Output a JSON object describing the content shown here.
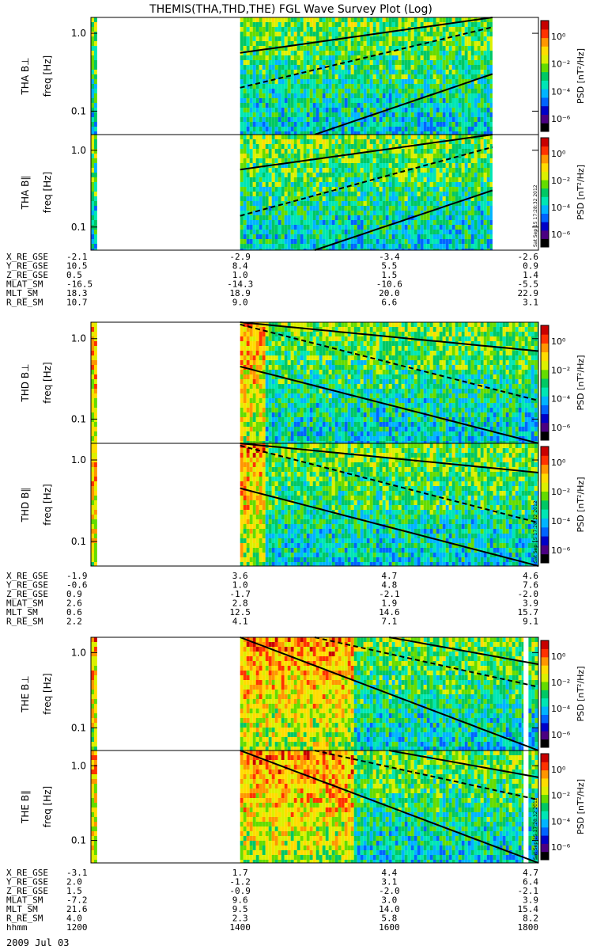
{
  "title": "THEMIS(THA,THD,THE) FGL Wave Survey Plot (Log)",
  "date": "2009 Jul 03",
  "stamp": "Sat Sep 15 17:28:32 2012",
  "ephem_tick_hours": [
    "1200",
    "1400",
    "1600",
    "1800"
  ],
  "colorbar": {
    "label": "PSD [nT²/Hz]",
    "tick_labels": [
      "10⁰",
      "10⁻²",
      "10⁻⁴",
      "10⁻⁶"
    ],
    "colors": [
      "#000000",
      "#4b0082",
      "#0000c8",
      "#0064ff",
      "#00b4ff",
      "#00e6b4",
      "#00c864",
      "#64dc00",
      "#dcf000",
      "#ffdc00",
      "#ff9600",
      "#ff3200",
      "#c80000"
    ]
  },
  "ephem_rows": {
    "a": [
      {
        "label": "X_RE_GSE",
        "values": [
          "-2.1",
          "-2.9",
          "-3.4",
          "-2.6"
        ]
      },
      {
        "label": "Y_RE_GSE",
        "values": [
          "10.5",
          "8.4",
          "5.5",
          "0.9"
        ]
      },
      {
        "label": "Z_RE_GSE",
        "values": [
          "0.5",
          "1.0",
          "1.5",
          "1.4"
        ]
      },
      {
        "label": "MLAT_SM",
        "values": [
          "-16.5",
          "-14.3",
          "-10.6",
          "-5.5"
        ]
      },
      {
        "label": "MLT_SM",
        "values": [
          "18.3",
          "18.9",
          "20.0",
          "22.9"
        ]
      },
      {
        "label": "R_RE_SM",
        "values": [
          "10.7",
          "9.0",
          "6.6",
          "3.1"
        ]
      }
    ],
    "d": [
      {
        "label": "X_RE_GSE",
        "values": [
          "-1.9",
          "3.6",
          "4.7",
          "4.6"
        ]
      },
      {
        "label": "Y_RE_GSE",
        "values": [
          "-0.6",
          "1.0",
          "4.8",
          "7.6"
        ]
      },
      {
        "label": "Z_RE_GSE",
        "values": [
          "0.9",
          "-1.7",
          "-2.1",
          "-2.0"
        ]
      },
      {
        "label": "MLAT_SM",
        "values": [
          "2.6",
          "2.8",
          "1.9",
          "3.9"
        ]
      },
      {
        "label": "MLT_SM",
        "values": [
          "0.6",
          "12.5",
          "14.6",
          "15.7"
        ]
      },
      {
        "label": "R_RE_SM",
        "values": [
          "2.2",
          "4.1",
          "7.1",
          "9.1"
        ]
      }
    ],
    "e": [
      {
        "label": "X_RE_GSE",
        "values": [
          "-3.1",
          "1.7",
          "4.4",
          "4.7"
        ]
      },
      {
        "label": "Y_RE_GSE",
        "values": [
          "2.0",
          "-1.2",
          "3.1",
          "6.4"
        ]
      },
      {
        "label": "Z_RE_GSE",
        "values": [
          "1.5",
          "-0.9",
          "-2.0",
          "-2.1"
        ]
      },
      {
        "label": "MLAT_SM",
        "values": [
          "-7.2",
          "9.6",
          "3.0",
          "3.9"
        ]
      },
      {
        "label": "MLT_SM",
        "values": [
          "21.6",
          "9.5",
          "14.0",
          "15.4"
        ]
      },
      {
        "label": "R_RE_SM",
        "values": [
          "4.0",
          "2.3",
          "5.8",
          "8.2"
        ]
      },
      {
        "label": "hhmm",
        "values": [
          "1200",
          "1400",
          "1600",
          "1800"
        ]
      }
    ]
  },
  "chart_data": [
    {
      "type": "heatmap",
      "ylabel": "THA B⊥",
      "ylabel2": "freq [Hz]",
      "y_scale": "log",
      "ylim": [
        0.05,
        1.6
      ],
      "y_ticks": [
        0.1,
        1.0
      ],
      "y_tick_labels": [
        "0.1",
        "1.0"
      ],
      "x_range_hhmm": [
        "1200",
        "1800"
      ],
      "data_intervals_hhmm": [
        [
          "1200",
          "1205"
        ],
        [
          "1400",
          "1723"
        ]
      ],
      "curves": {
        "solid_upper": [
          [
            1400,
            0.56
          ],
          [
            1723,
            1.6
          ]
        ],
        "dashed": [
          [
            1400,
            0.2
          ],
          [
            1723,
            1.2
          ]
        ],
        "solid_lower": [
          [
            1500,
            0.05
          ],
          [
            1723,
            0.3
          ]
        ]
      }
    },
    {
      "type": "heatmap",
      "ylabel": "THA B∥",
      "ylabel2": "freq [Hz]",
      "y_scale": "log",
      "ylim": [
        0.05,
        1.6
      ],
      "y_ticks": [
        0.1,
        1.0
      ],
      "y_tick_labels": [
        "0.1",
        "1.0"
      ],
      "x_range_hhmm": [
        "1200",
        "1800"
      ],
      "data_intervals_hhmm": [
        [
          "1200",
          "1205"
        ],
        [
          "1400",
          "1723"
        ]
      ],
      "curves": {
        "solid_upper": [
          [
            1400,
            0.56
          ],
          [
            1723,
            1.6
          ]
        ],
        "dashed": [
          [
            1400,
            0.14
          ],
          [
            1723,
            1.1
          ]
        ],
        "solid_lower": [
          [
            1500,
            0.05
          ],
          [
            1723,
            0.3
          ]
        ]
      }
    },
    {
      "type": "heatmap",
      "ylabel": "THD B⊥",
      "ylabel2": "freq [Hz]",
      "y_scale": "log",
      "ylim": [
        0.05,
        1.6
      ],
      "y_ticks": [
        0.1,
        1.0
      ],
      "y_tick_labels": [
        "0.1",
        "1.0"
      ],
      "x_range_hhmm": [
        "1200",
        "1800"
      ],
      "data_intervals_hhmm": [
        [
          "1200",
          "1205"
        ],
        [
          "1400",
          "1800"
        ]
      ],
      "curves": {
        "solid_upper": [
          [
            1400,
            1.6
          ],
          [
            1800,
            0.7
          ]
        ],
        "dashed": [
          [
            1400,
            1.5
          ],
          [
            1800,
            0.17
          ]
        ],
        "solid_lower": [
          [
            1400,
            0.45
          ],
          [
            1800,
            0.05
          ]
        ]
      }
    },
    {
      "type": "heatmap",
      "ylabel": "THD B∥",
      "ylabel2": "freq [Hz]",
      "y_scale": "log",
      "ylim": [
        0.05,
        1.6
      ],
      "y_ticks": [
        0.1,
        1.0
      ],
      "y_tick_labels": [
        "0.1",
        "1.0"
      ],
      "x_range_hhmm": [
        "1200",
        "1800"
      ],
      "data_intervals_hhmm": [
        [
          "1200",
          "1205"
        ],
        [
          "1400",
          "1800"
        ]
      ],
      "curves": {
        "solid_upper": [
          [
            1400,
            1.6
          ],
          [
            1800,
            0.7
          ]
        ],
        "dashed": [
          [
            1400,
            1.5
          ],
          [
            1800,
            0.17
          ]
        ],
        "solid_lower": [
          [
            1400,
            0.45
          ],
          [
            1800,
            0.05
          ]
        ]
      }
    },
    {
      "type": "heatmap",
      "ylabel": "THE B⊥",
      "ylabel2": "freq [Hz]",
      "y_scale": "log",
      "ylim": [
        0.05,
        1.6
      ],
      "y_ticks": [
        0.1,
        1.0
      ],
      "y_tick_labels": [
        "0.1",
        "1.0"
      ],
      "x_range_hhmm": [
        "1200",
        "1800"
      ],
      "data_intervals_hhmm": [
        [
          "1200",
          "1205"
        ],
        [
          "1400",
          "1748"
        ],
        [
          "1752",
          "1800"
        ]
      ],
      "curves": {
        "solid_upper": [
          [
            1600,
            1.6
          ],
          [
            1800,
            0.7
          ]
        ],
        "dashed": [
          [
            1500,
            1.6
          ],
          [
            1800,
            0.35
          ]
        ],
        "solid_lower": [
          [
            1400,
            1.6
          ],
          [
            1800,
            0.05
          ]
        ]
      }
    },
    {
      "type": "heatmap",
      "ylabel": "THE B∥",
      "ylabel2": "freq [Hz]",
      "y_scale": "log",
      "ylim": [
        0.05,
        1.6
      ],
      "y_ticks": [
        0.1,
        1.0
      ],
      "y_tick_labels": [
        "0.1",
        "1.0"
      ],
      "x_range_hhmm": [
        "1200",
        "1800"
      ],
      "data_intervals_hhmm": [
        [
          "1200",
          "1205"
        ],
        [
          "1400",
          "1748"
        ],
        [
          "1752",
          "1800"
        ]
      ],
      "curves": {
        "solid_upper": [
          [
            1600,
            1.6
          ],
          [
            1800,
            0.7
          ]
        ],
        "dashed": [
          [
            1500,
            1.6
          ],
          [
            1800,
            0.35
          ]
        ],
        "solid_lower": [
          [
            1400,
            1.6
          ],
          [
            1800,
            0.05
          ]
        ]
      }
    }
  ]
}
